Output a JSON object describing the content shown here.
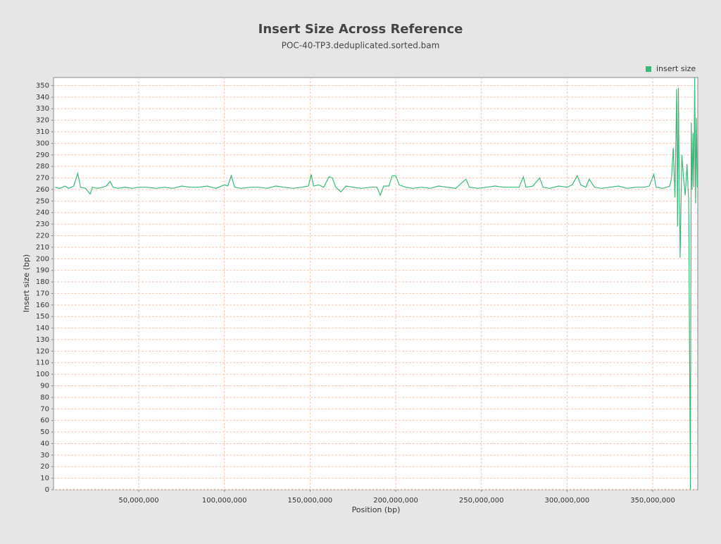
{
  "chart_data": {
    "type": "line",
    "title": "Insert Size Across Reference",
    "subtitle": "POC-40-TP3.deduplicated.sorted.bam",
    "x_label": "Position (bp)",
    "y_label": "Insert size (bp)",
    "legend": "top-right",
    "grid": true,
    "xlim": [
      250000,
      376300000
    ],
    "ylim": [
      0,
      357
    ],
    "xticks": [
      {
        "value": 50000000,
        "label": "50,000,000"
      },
      {
        "value": 100000000,
        "label": "100,000,000"
      },
      {
        "value": 150000000,
        "label": "150,000,000"
      },
      {
        "value": 200000000,
        "label": "200,000,000"
      },
      {
        "value": 250000000,
        "label": "250,000,000"
      },
      {
        "value": 300000000,
        "label": "300,000,000"
      },
      {
        "value": 350000000,
        "label": "350,000,000"
      }
    ],
    "yticks": [
      0,
      10,
      20,
      30,
      40,
      50,
      60,
      70,
      80,
      90,
      100,
      110,
      120,
      130,
      140,
      150,
      160,
      170,
      180,
      190,
      200,
      210,
      220,
      230,
      240,
      250,
      260,
      270,
      280,
      290,
      300,
      310,
      320,
      330,
      340,
      350
    ],
    "x": [
      1000000,
      4000000,
      7000000,
      9000000,
      12000000,
      14400000,
      16000000,
      19000000,
      21600000,
      23000000,
      26000000,
      29000000,
      31000000,
      33300000,
      35000000,
      38000000,
      42000000,
      46000000,
      50000000,
      55000000,
      60000000,
      65000000,
      70000000,
      75000000,
      80000000,
      85000000,
      90000000,
      95000000,
      100000000,
      102000000,
      104000000,
      106000000,
      110000000,
      115000000,
      120000000,
      125000000,
      130000000,
      135000000,
      140000000,
      145000000,
      149000000,
      150700000,
      152000000,
      155000000,
      158000000,
      161000000,
      163000000,
      165000000,
      168000000,
      171000000,
      175000000,
      180000000,
      185000000,
      189000000,
      191000000,
      193000000,
      196000000,
      198000000,
      200000000,
      202000000,
      206000000,
      210000000,
      215000000,
      220000000,
      225000000,
      230000000,
      235000000,
      241000000,
      243000000,
      248000000,
      253000000,
      258000000,
      263000000,
      268000000,
      272000000,
      274500000,
      276000000,
      280000000,
      284000000,
      286000000,
      290000000,
      295000000,
      300000000,
      303000000,
      306000000,
      308000000,
      311000000,
      313000000,
      316000000,
      320000000,
      325000000,
      330000000,
      335000000,
      340000000,
      345000000,
      348000000,
      350600000,
      352000000,
      356000000,
      360000000,
      361000000,
      362000000,
      363000000,
      364000000,
      364500000,
      365000000,
      365500000,
      366000000,
      367000000,
      368000000,
      369000000,
      370000000,
      371000000,
      372000000,
      372500000,
      373000000,
      373500000,
      374000000,
      374500000,
      375000000,
      375500000,
      376000000
    ],
    "series": [
      {
        "name": "insert size",
        "color": "#3cb878",
        "values": [
          262,
          261,
          263,
          261,
          263,
          274,
          262,
          261,
          256,
          262,
          261,
          262,
          263,
          267,
          262,
          261,
          262,
          261,
          262,
          262,
          261,
          262,
          261,
          263,
          262,
          262,
          263,
          261,
          264,
          263,
          272,
          262,
          261,
          262,
          262,
          261,
          263,
          262,
          261,
          262,
          263,
          273,
          263,
          264,
          262,
          271,
          270,
          262,
          258,
          263,
          262,
          261,
          262,
          262,
          255,
          263,
          263,
          272,
          272,
          264,
          262,
          261,
          262,
          261,
          263,
          262,
          261,
          269,
          262,
          261,
          262,
          263,
          262,
          262,
          262,
          271,
          262,
          263,
          270,
          262,
          261,
          263,
          262,
          264,
          272,
          264,
          262,
          269,
          262,
          261,
          262,
          263,
          261,
          262,
          262,
          263,
          273,
          262,
          261,
          263,
          270,
          296,
          253,
          347,
          228,
          348,
          262,
          201,
          290,
          270,
          255,
          282,
          250,
          0,
          318,
          260,
          309,
          262,
          357,
          248,
          322,
          262
        ]
      }
    ]
  }
}
